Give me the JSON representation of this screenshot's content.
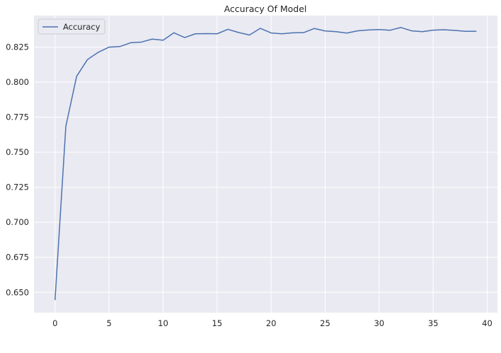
{
  "chart_data": {
    "type": "line",
    "title": "Accuracy Of Model",
    "xlabel": "",
    "ylabel": "",
    "xlim": [
      -1.95,
      40.95
    ],
    "ylim": [
      0.6355,
      0.8475
    ],
    "xticks": [
      0,
      5,
      10,
      15,
      20,
      25,
      30,
      35,
      40
    ],
    "yticks": [
      0.65,
      0.675,
      0.7,
      0.725,
      0.75,
      0.775,
      0.8,
      0.825
    ],
    "ytick_labels": [
      "0.650",
      "0.675",
      "0.700",
      "0.725",
      "0.750",
      "0.775",
      "0.800",
      "0.825"
    ],
    "grid": true,
    "legend": "upper-left",
    "series": [
      {
        "name": "Accuracy",
        "color": "#4c72b0",
        "x": [
          0,
          1,
          2,
          3,
          4,
          5,
          6,
          7,
          8,
          9,
          10,
          11,
          12,
          13,
          14,
          15,
          16,
          17,
          18,
          19,
          20,
          21,
          22,
          23,
          24,
          25,
          26,
          27,
          28,
          29,
          30,
          31,
          32,
          33,
          34,
          35,
          36,
          37,
          38,
          39
        ],
        "y": [
          0.6445,
          0.7685,
          0.8042,
          0.8161,
          0.8213,
          0.825,
          0.8254,
          0.8281,
          0.8286,
          0.8307,
          0.8299,
          0.8352,
          0.8318,
          0.8345,
          0.8346,
          0.8345,
          0.8377,
          0.8354,
          0.8336,
          0.8384,
          0.8351,
          0.8345,
          0.8352,
          0.8353,
          0.8383,
          0.8365,
          0.836,
          0.835,
          0.8366,
          0.8372,
          0.8375,
          0.837,
          0.839,
          0.8366,
          0.836,
          0.8371,
          0.8374,
          0.8369,
          0.8363,
          0.8363
        ]
      }
    ]
  }
}
